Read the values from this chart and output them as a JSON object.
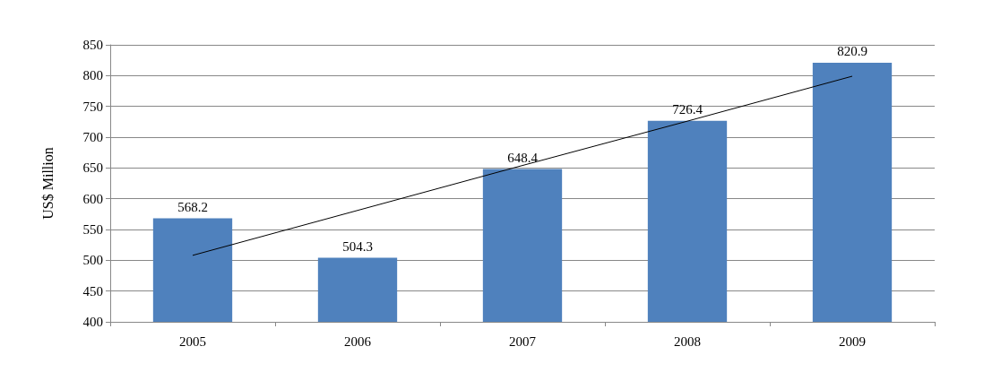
{
  "chart_data": {
    "type": "bar",
    "ylabel": "US$ Million",
    "categories": [
      "2005",
      "2006",
      "2007",
      "2008",
      "2009"
    ],
    "series": [
      {
        "color": "#4f81bd",
        "values": [
          568.2,
          504.3,
          648.4,
          726.4,
          820.9
        ],
        "value_labels": [
          "568.2",
          "504.3",
          "648.4",
          "726.4",
          "820.9"
        ]
      },
      {
        "type": "line",
        "color": "#000000",
        "values": [
          508,
          581,
          654,
          726,
          799
        ]
      }
    ],
    "ylim": [
      400,
      850
    ],
    "yticks": [
      400,
      450,
      500,
      550,
      600,
      650,
      700,
      750,
      800,
      850
    ],
    "grid": "y"
  }
}
